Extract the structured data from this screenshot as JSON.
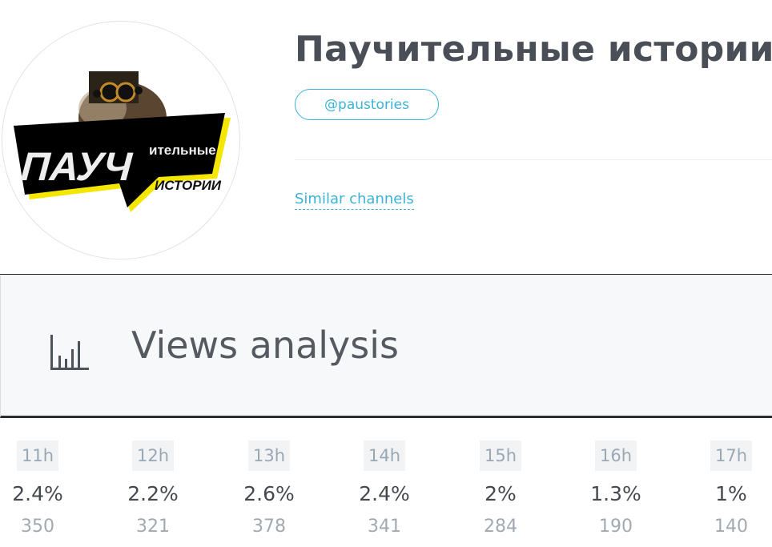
{
  "channel": {
    "title": "Паучительные истории",
    "handle": "@paustories",
    "similar_link": "Similar channels",
    "avatar": {
      "logo_text_main": "ПАУЧ",
      "logo_text_small": "ительные",
      "logo_text_bottom": "ИСТОРИИ"
    }
  },
  "views_panel": {
    "icon": "bar-chart-icon",
    "title": "Views analysis"
  },
  "hours": [
    {
      "hour": "11h",
      "percent": "2.4%",
      "views": "350"
    },
    {
      "hour": "12h",
      "percent": "2.2%",
      "views": "321"
    },
    {
      "hour": "13h",
      "percent": "2.6%",
      "views": "378"
    },
    {
      "hour": "14h",
      "percent": "2.4%",
      "views": "341"
    },
    {
      "hour": "15h",
      "percent": "2%",
      "views": "284"
    },
    {
      "hour": "16h",
      "percent": "1.3%",
      "views": "190"
    },
    {
      "hour": "17h",
      "percent": "1%",
      "views": "140"
    }
  ],
  "colors": {
    "accent": "#3bb3d8",
    "title": "#4a4f57",
    "logo_yellow": "#f5e600"
  }
}
